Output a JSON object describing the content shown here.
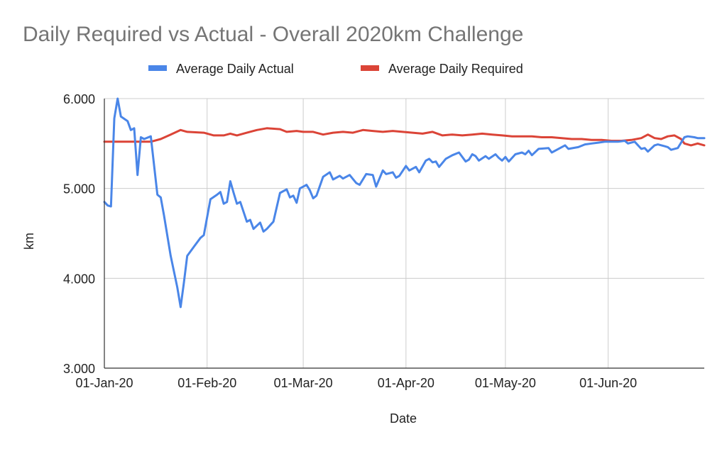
{
  "chart_data": {
    "type": "line",
    "title": "Daily Required vs Actual - Overall 2020km Challenge",
    "xlabel": "Date",
    "ylabel": "km",
    "ylim": [
      3,
      6
    ],
    "xlim": [
      "2020-01-01",
      "2020-06-30"
    ],
    "y_ticks": [
      "3.000",
      "4.000",
      "5.000",
      "6.000"
    ],
    "x_ticks": [
      {
        "date": "2020-01-01",
        "label": "01-Jan-20"
      },
      {
        "date": "2020-02-01",
        "label": "01-Feb-20"
      },
      {
        "date": "2020-03-01",
        "label": "01-Mar-20"
      },
      {
        "date": "2020-04-01",
        "label": "01-Apr-20"
      },
      {
        "date": "2020-05-01",
        "label": "01-May-20"
      },
      {
        "date": "2020-06-01",
        "label": "01-Jun-20"
      }
    ],
    "grid": true,
    "legend_position": "top",
    "series": [
      {
        "name": "Average Daily Actual",
        "color": "#4a86e8",
        "points": [
          [
            "2020-01-01",
            4.85
          ],
          [
            "2020-01-02",
            4.81
          ],
          [
            "2020-01-03",
            4.8
          ],
          [
            "2020-01-04",
            5.78
          ],
          [
            "2020-01-05",
            6.0
          ],
          [
            "2020-01-06",
            5.8
          ],
          [
            "2020-01-08",
            5.75
          ],
          [
            "2020-01-09",
            5.65
          ],
          [
            "2020-01-10",
            5.67
          ],
          [
            "2020-01-11",
            5.15
          ],
          [
            "2020-01-12",
            5.57
          ],
          [
            "2020-01-13",
            5.55
          ],
          [
            "2020-01-15",
            5.58
          ],
          [
            "2020-01-17",
            4.93
          ],
          [
            "2020-01-18",
            4.9
          ],
          [
            "2020-01-19",
            4.7
          ],
          [
            "2020-01-21",
            4.25
          ],
          [
            "2020-01-23",
            3.9
          ],
          [
            "2020-01-24",
            3.68
          ],
          [
            "2020-01-25",
            3.95
          ],
          [
            "2020-01-26",
            4.25
          ],
          [
            "2020-01-28",
            4.35
          ],
          [
            "2020-01-30",
            4.45
          ],
          [
            "2020-01-31",
            4.48
          ],
          [
            "2020-02-02",
            4.88
          ],
          [
            "2020-02-04",
            4.93
          ],
          [
            "2020-02-05",
            4.96
          ],
          [
            "2020-02-06",
            4.83
          ],
          [
            "2020-02-07",
            4.85
          ],
          [
            "2020-02-08",
            5.08
          ],
          [
            "2020-02-09",
            4.95
          ],
          [
            "2020-02-10",
            4.83
          ],
          [
            "2020-02-11",
            4.85
          ],
          [
            "2020-02-13",
            4.63
          ],
          [
            "2020-02-14",
            4.65
          ],
          [
            "2020-02-15",
            4.55
          ],
          [
            "2020-02-17",
            4.62
          ],
          [
            "2020-02-18",
            4.52
          ],
          [
            "2020-02-19",
            4.55
          ],
          [
            "2020-02-21",
            4.63
          ],
          [
            "2020-02-23",
            4.95
          ],
          [
            "2020-02-25",
            4.99
          ],
          [
            "2020-02-26",
            4.9
          ],
          [
            "2020-02-27",
            4.92
          ],
          [
            "2020-02-28",
            4.84
          ],
          [
            "2020-02-29",
            5.0
          ],
          [
            "2020-03-02",
            5.04
          ],
          [
            "2020-03-03",
            4.98
          ],
          [
            "2020-03-04",
            4.89
          ],
          [
            "2020-03-05",
            4.92
          ],
          [
            "2020-03-07",
            5.13
          ],
          [
            "2020-03-09",
            5.18
          ],
          [
            "2020-03-10",
            5.1
          ],
          [
            "2020-03-12",
            5.14
          ],
          [
            "2020-03-13",
            5.11
          ],
          [
            "2020-03-15",
            5.15
          ],
          [
            "2020-03-17",
            5.06
          ],
          [
            "2020-03-18",
            5.04
          ],
          [
            "2020-03-20",
            5.16
          ],
          [
            "2020-03-22",
            5.15
          ],
          [
            "2020-03-23",
            5.02
          ],
          [
            "2020-03-25",
            5.2
          ],
          [
            "2020-03-26",
            5.16
          ],
          [
            "2020-03-28",
            5.18
          ],
          [
            "2020-03-29",
            5.12
          ],
          [
            "2020-03-30",
            5.14
          ],
          [
            "2020-04-01",
            5.25
          ],
          [
            "2020-04-02",
            5.2
          ],
          [
            "2020-04-04",
            5.24
          ],
          [
            "2020-04-05",
            5.18
          ],
          [
            "2020-04-07",
            5.31
          ],
          [
            "2020-04-08",
            5.33
          ],
          [
            "2020-04-09",
            5.29
          ],
          [
            "2020-04-10",
            5.3
          ],
          [
            "2020-04-11",
            5.24
          ],
          [
            "2020-04-13",
            5.33
          ],
          [
            "2020-04-15",
            5.37
          ],
          [
            "2020-04-17",
            5.4
          ],
          [
            "2020-04-19",
            5.3
          ],
          [
            "2020-04-20",
            5.32
          ],
          [
            "2020-04-21",
            5.38
          ],
          [
            "2020-04-22",
            5.36
          ],
          [
            "2020-04-23",
            5.31
          ],
          [
            "2020-04-25",
            5.36
          ],
          [
            "2020-04-26",
            5.33
          ],
          [
            "2020-04-28",
            5.38
          ],
          [
            "2020-04-29",
            5.34
          ],
          [
            "2020-04-30",
            5.31
          ],
          [
            "2020-05-01",
            5.35
          ],
          [
            "2020-05-02",
            5.3
          ],
          [
            "2020-05-04",
            5.38
          ],
          [
            "2020-05-06",
            5.4
          ],
          [
            "2020-05-07",
            5.38
          ],
          [
            "2020-05-08",
            5.42
          ],
          [
            "2020-05-09",
            5.37
          ],
          [
            "2020-05-11",
            5.44
          ],
          [
            "2020-05-14",
            5.45
          ],
          [
            "2020-05-15",
            5.4
          ],
          [
            "2020-05-17",
            5.44
          ],
          [
            "2020-05-19",
            5.48
          ],
          [
            "2020-05-20",
            5.44
          ],
          [
            "2020-05-23",
            5.46
          ],
          [
            "2020-05-25",
            5.49
          ],
          [
            "2020-05-27",
            5.5
          ],
          [
            "2020-05-29",
            5.51
          ],
          [
            "2020-05-31",
            5.52
          ],
          [
            "2020-06-02",
            5.52
          ],
          [
            "2020-06-04",
            5.52
          ],
          [
            "2020-06-06",
            5.53
          ],
          [
            "2020-06-07",
            5.5
          ],
          [
            "2020-06-09",
            5.52
          ],
          [
            "2020-06-11",
            5.44
          ],
          [
            "2020-06-12",
            5.45
          ],
          [
            "2020-06-13",
            5.41
          ],
          [
            "2020-06-15",
            5.48
          ],
          [
            "2020-06-16",
            5.49
          ],
          [
            "2020-06-18",
            5.47
          ],
          [
            "2020-06-19",
            5.46
          ],
          [
            "2020-06-20",
            5.43
          ],
          [
            "2020-06-22",
            5.45
          ],
          [
            "2020-06-24",
            5.57
          ],
          [
            "2020-06-25",
            5.58
          ],
          [
            "2020-06-27",
            5.57
          ],
          [
            "2020-06-28",
            5.56
          ],
          [
            "2020-06-29",
            5.56
          ],
          [
            "2020-06-30",
            5.56
          ]
        ]
      },
      {
        "name": "Average Daily Required",
        "color": "#db4437",
        "points": [
          [
            "2020-01-01",
            5.52
          ],
          [
            "2020-01-05",
            5.52
          ],
          [
            "2020-01-10",
            5.52
          ],
          [
            "2020-01-15",
            5.52
          ],
          [
            "2020-01-18",
            5.55
          ],
          [
            "2020-01-21",
            5.6
          ],
          [
            "2020-01-24",
            5.65
          ],
          [
            "2020-01-26",
            5.63
          ],
          [
            "2020-01-31",
            5.62
          ],
          [
            "2020-02-03",
            5.59
          ],
          [
            "2020-02-06",
            5.59
          ],
          [
            "2020-02-08",
            5.61
          ],
          [
            "2020-02-10",
            5.59
          ],
          [
            "2020-02-13",
            5.62
          ],
          [
            "2020-02-16",
            5.65
          ],
          [
            "2020-02-19",
            5.67
          ],
          [
            "2020-02-23",
            5.66
          ],
          [
            "2020-02-25",
            5.63
          ],
          [
            "2020-02-28",
            5.64
          ],
          [
            "2020-03-01",
            5.63
          ],
          [
            "2020-03-04",
            5.63
          ],
          [
            "2020-03-07",
            5.6
          ],
          [
            "2020-03-10",
            5.62
          ],
          [
            "2020-03-13",
            5.63
          ],
          [
            "2020-03-16",
            5.62
          ],
          [
            "2020-03-19",
            5.65
          ],
          [
            "2020-03-22",
            5.64
          ],
          [
            "2020-03-25",
            5.63
          ],
          [
            "2020-03-28",
            5.64
          ],
          [
            "2020-03-31",
            5.63
          ],
          [
            "2020-04-03",
            5.62
          ],
          [
            "2020-04-06",
            5.61
          ],
          [
            "2020-04-09",
            5.63
          ],
          [
            "2020-04-12",
            5.59
          ],
          [
            "2020-04-15",
            5.6
          ],
          [
            "2020-04-18",
            5.59
          ],
          [
            "2020-04-21",
            5.6
          ],
          [
            "2020-04-24",
            5.61
          ],
          [
            "2020-04-27",
            5.6
          ],
          [
            "2020-04-30",
            5.59
          ],
          [
            "2020-05-03",
            5.58
          ],
          [
            "2020-05-06",
            5.58
          ],
          [
            "2020-05-09",
            5.58
          ],
          [
            "2020-05-12",
            5.57
          ],
          [
            "2020-05-15",
            5.57
          ],
          [
            "2020-05-18",
            5.56
          ],
          [
            "2020-05-21",
            5.55
          ],
          [
            "2020-05-24",
            5.55
          ],
          [
            "2020-05-27",
            5.54
          ],
          [
            "2020-05-30",
            5.54
          ],
          [
            "2020-06-02",
            5.53
          ],
          [
            "2020-06-05",
            5.53
          ],
          [
            "2020-06-08",
            5.54
          ],
          [
            "2020-06-11",
            5.56
          ],
          [
            "2020-06-13",
            5.6
          ],
          [
            "2020-06-15",
            5.56
          ],
          [
            "2020-06-17",
            5.55
          ],
          [
            "2020-06-19",
            5.58
          ],
          [
            "2020-06-21",
            5.59
          ],
          [
            "2020-06-23",
            5.55
          ],
          [
            "2020-06-24",
            5.5
          ],
          [
            "2020-06-26",
            5.48
          ],
          [
            "2020-06-28",
            5.5
          ],
          [
            "2020-06-30",
            5.48
          ]
        ]
      }
    ]
  }
}
